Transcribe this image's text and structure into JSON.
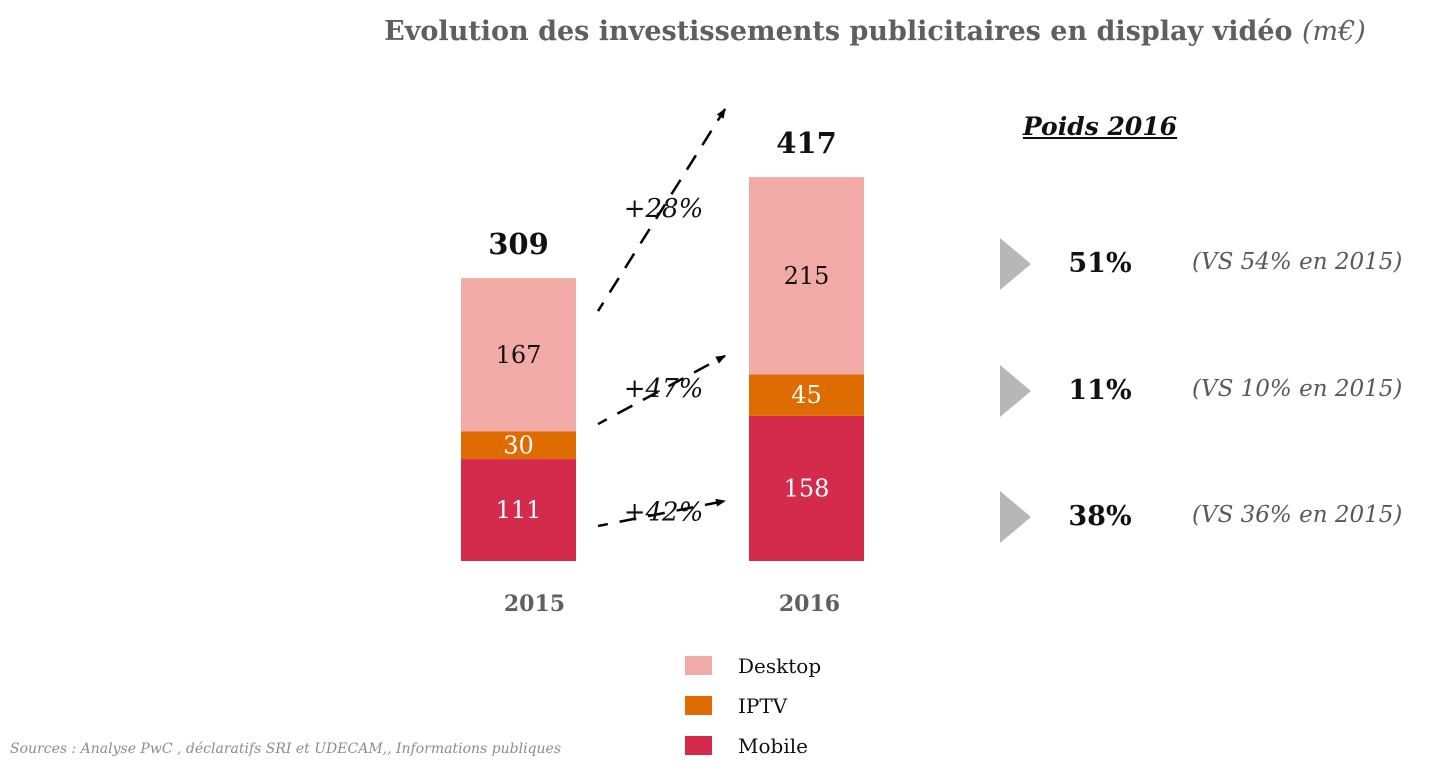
{
  "title": {
    "main": "Evolution des investissements publicitaires en display vidéo",
    "unit": "(m€)"
  },
  "chart_data": {
    "type": "bar",
    "stacked": true,
    "title": "Evolution des investissements publicitaires en display vidéo (m€)",
    "categories": [
      "2015",
      "2016"
    ],
    "series": [
      {
        "name": "Mobile",
        "color": "#d42b4c",
        "values": [
          111,
          158
        ]
      },
      {
        "name": "IPTV",
        "color": "#df6c00",
        "values": [
          30,
          45
        ]
      },
      {
        "name": "Desktop",
        "color": "#f2aaa6",
        "values": [
          167,
          215
        ]
      }
    ],
    "totals": [
      "309",
      "417"
    ],
    "segment_labels": [
      [
        "111",
        "30",
        "167"
      ],
      [
        "158",
        "45",
        "215"
      ]
    ],
    "segment_label_colors": [
      [
        "#ffffff",
        "#ffffff",
        "#111111"
      ],
      [
        "#ffffff",
        "#ffffff",
        "#111111"
      ]
    ],
    "growth": [
      {
        "series": "Desktop",
        "label": "+28%"
      },
      {
        "series": "IPTV",
        "label": "+47%"
      },
      {
        "series": "Mobile",
        "label": "+42%"
      }
    ],
    "legend": [
      "Desktop",
      "IPTV",
      "Mobile"
    ],
    "legend_position": "bottom",
    "grid": false
  },
  "weights": {
    "title": "Poids 2016",
    "rows": [
      {
        "series": "Desktop",
        "value": "51%",
        "compare": "(VS 54% en 2015)"
      },
      {
        "series": "IPTV",
        "value": "11%",
        "compare": "(VS 10% en 2015)"
      },
      {
        "series": "Mobile",
        "value": "38%",
        "compare": "(VS 36% en 2015)"
      }
    ],
    "arrow_color": "#b7b7b7"
  },
  "legend": [
    {
      "label": "Desktop",
      "color": "#f2aaa6"
    },
    {
      "label": "IPTV",
      "color": "#df6c00"
    },
    {
      "label": "Mobile",
      "color": "#d42b4c"
    }
  ],
  "source": "Sources : Analyse PwC , déclaratifs SRI et UDECAM,, Informations publiques"
}
